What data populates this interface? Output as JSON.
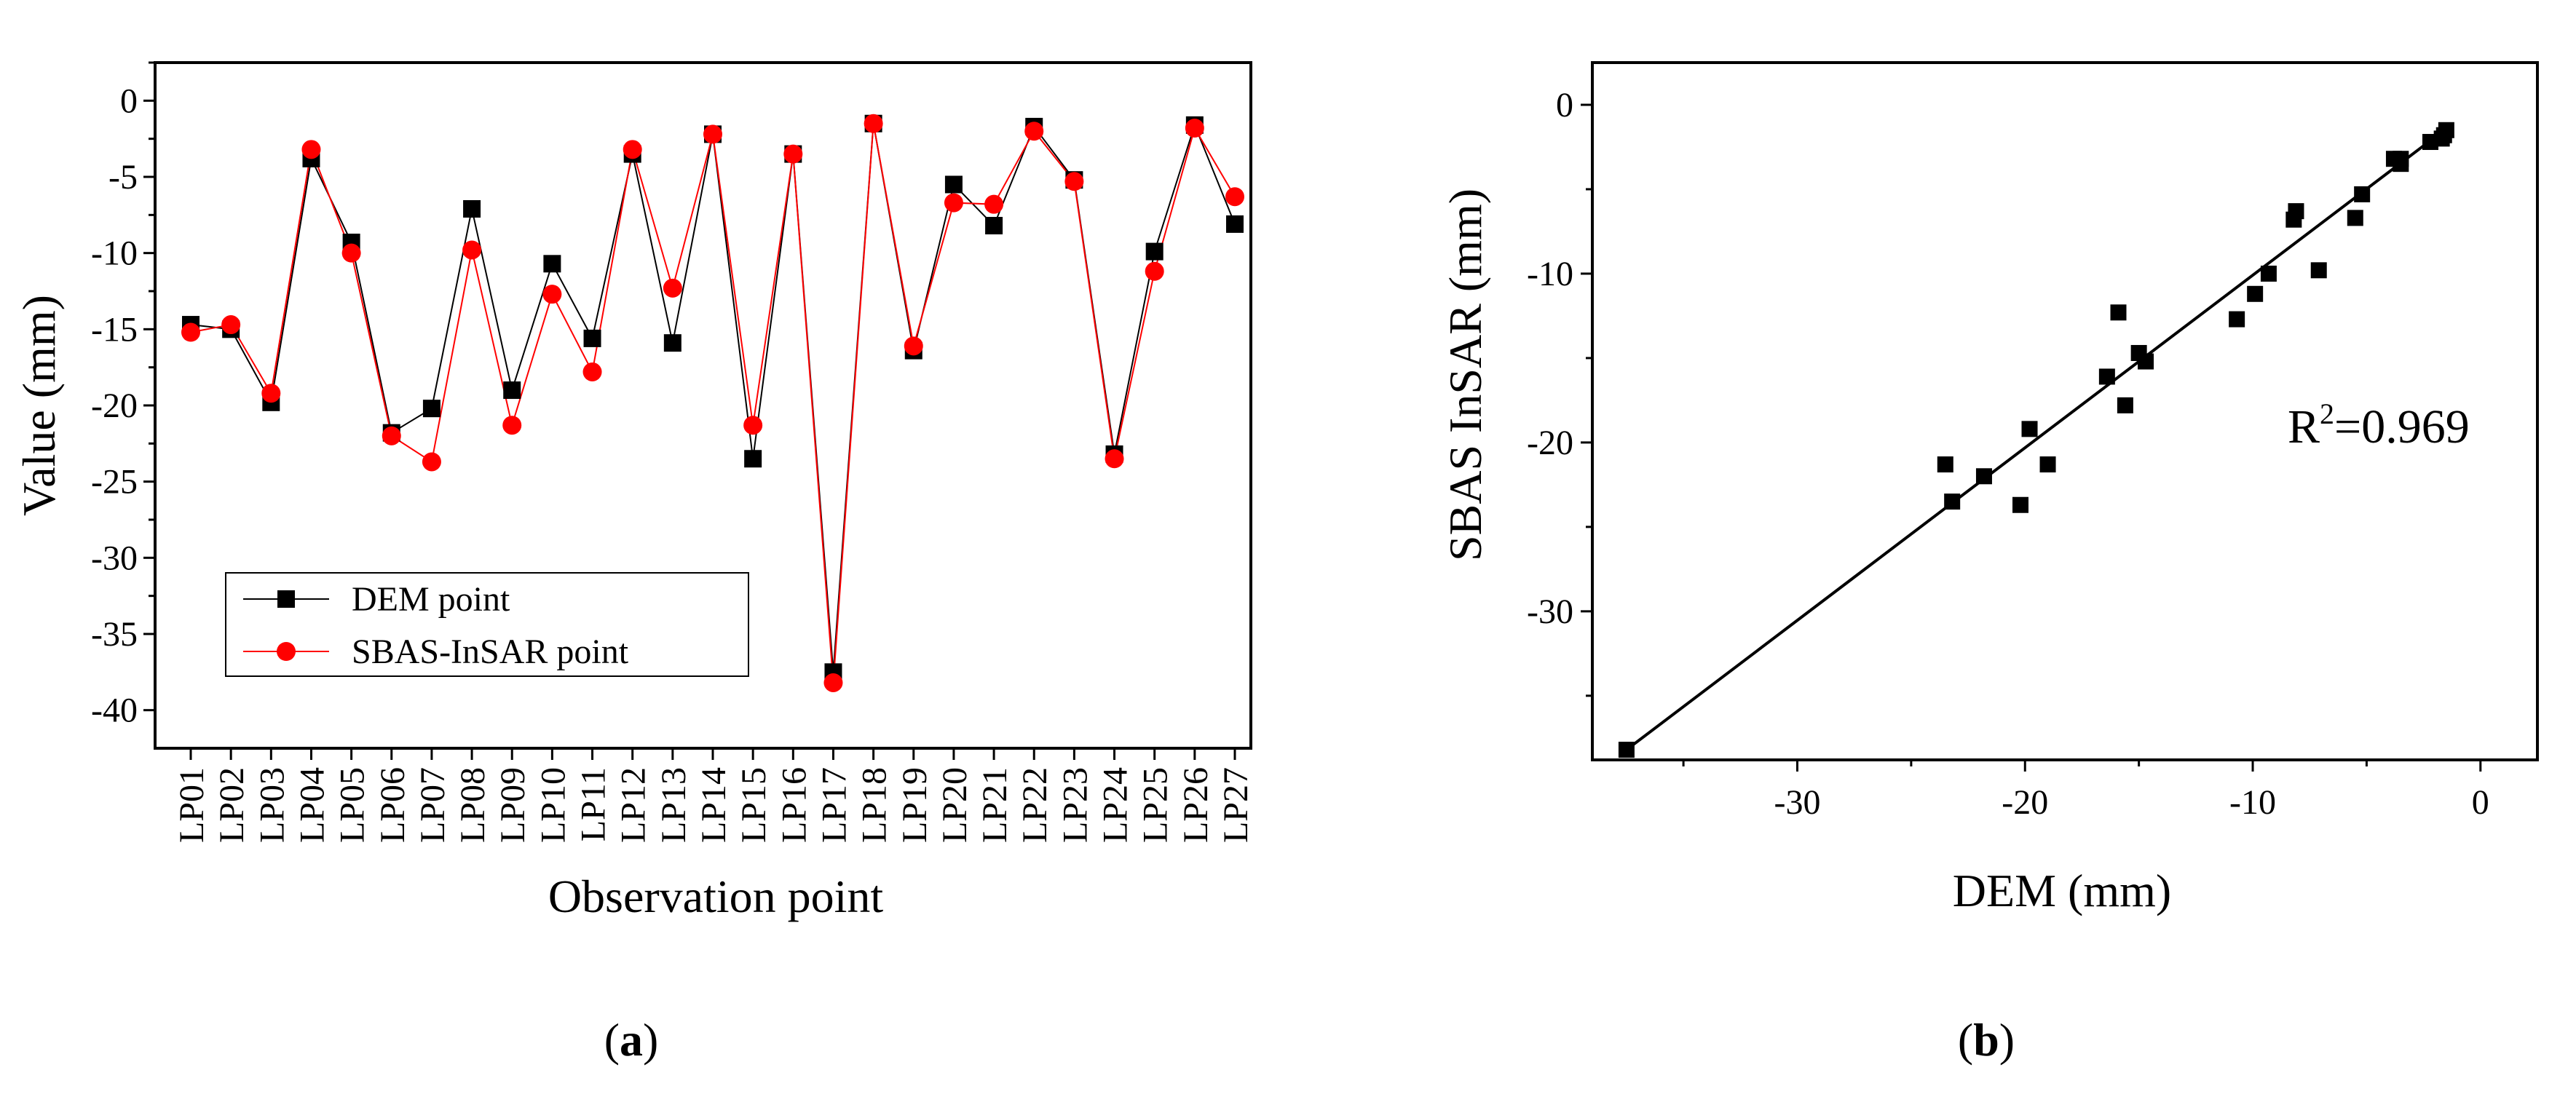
{
  "chart_data": [
    {
      "type": "line",
      "panel_label": "a",
      "xlabel": "Observation point",
      "ylabel": "Value (mm)",
      "ylim": [
        -42.5,
        2.5
      ],
      "yticks": [
        0,
        -5,
        -10,
        -15,
        -20,
        -25,
        -30,
        -35,
        -40
      ],
      "categories": [
        "LP01",
        "LP02",
        "LP03",
        "LP04",
        "LP05",
        "LP06",
        "LP07",
        "LP08",
        "LP09",
        "LP10",
        "LP11",
        "LP12",
        "LP13",
        "LP14",
        "LP15",
        "LP16",
        "LP17",
        "LP18",
        "LP19",
        "LP20",
        "LP21",
        "LP22",
        "LP23",
        "LP24",
        "LP25",
        "LP26",
        "LP27"
      ],
      "series": [
        {
          "name": "DEM point",
          "color": "#000000",
          "marker": "square",
          "values": [
            -14.7,
            -15.0,
            -19.8,
            -3.8,
            -9.3,
            -21.8,
            -20.2,
            -7.1,
            -19.0,
            -10.7,
            -15.6,
            -3.5,
            -15.9,
            -2.2,
            -23.5,
            -3.5,
            -37.5,
            -1.5,
            -16.4,
            -5.5,
            -8.2,
            -1.7,
            -5.2,
            -23.2,
            -9.9,
            -1.6,
            -8.1
          ]
        },
        {
          "name": "SBAS-InSAR point",
          "color": "#ff0000",
          "marker": "circle",
          "values": [
            -15.2,
            -14.7,
            -19.2,
            -3.2,
            -10.0,
            -22.0,
            -23.7,
            -9.8,
            -21.3,
            -12.7,
            -17.8,
            -3.2,
            -12.3,
            -2.2,
            -21.3,
            -3.5,
            -38.2,
            -1.5,
            -16.1,
            -6.7,
            -6.8,
            -2.0,
            -5.3,
            -23.5,
            -11.2,
            -1.8,
            -6.3
          ]
        }
      ]
    },
    {
      "type": "scatter",
      "panel_label": "b",
      "xlabel": "DEM (mm)",
      "ylabel": "SBAS InSAR (mm)",
      "xlim": [
        -39,
        2.5
      ],
      "ylim": [
        -38.8,
        2.5
      ],
      "xticks": [
        -30,
        -20,
        -10,
        0
      ],
      "yticks": [
        0,
        -10,
        -20,
        -30
      ],
      "annotation": {
        "prefix": "R",
        "superscript": "2",
        "suffix": "=0.969"
      },
      "fit_line": {
        "x": [
          -37.5,
          -1.3
        ],
        "y": [
          -38.2,
          -1.2
        ]
      },
      "points": [
        [
          -37.5,
          -38.2
        ],
        [
          -23.5,
          -21.3
        ],
        [
          -23.2,
          -23.5
        ],
        [
          -21.8,
          -22.0
        ],
        [
          -20.2,
          -23.7
        ],
        [
          -19.8,
          -19.2
        ],
        [
          -19.0,
          -21.3
        ],
        [
          -16.4,
          -16.1
        ],
        [
          -15.9,
          -12.3
        ],
        [
          -15.6,
          -17.8
        ],
        [
          -15.0,
          -14.7
        ],
        [
          -14.7,
          -15.2
        ],
        [
          -10.7,
          -12.7
        ],
        [
          -9.9,
          -11.2
        ],
        [
          -9.3,
          -10.0
        ],
        [
          -8.2,
          -6.8
        ],
        [
          -8.1,
          -6.3
        ],
        [
          -7.1,
          -9.8
        ],
        [
          -5.5,
          -6.7
        ],
        [
          -5.2,
          -5.3
        ],
        [
          -3.8,
          -3.2
        ],
        [
          -3.5,
          -3.5
        ],
        [
          -3.5,
          -3.2
        ],
        [
          -2.2,
          -2.2
        ],
        [
          -1.7,
          -2.0
        ],
        [
          -1.6,
          -1.8
        ],
        [
          -1.5,
          -1.5
        ]
      ]
    }
  ]
}
